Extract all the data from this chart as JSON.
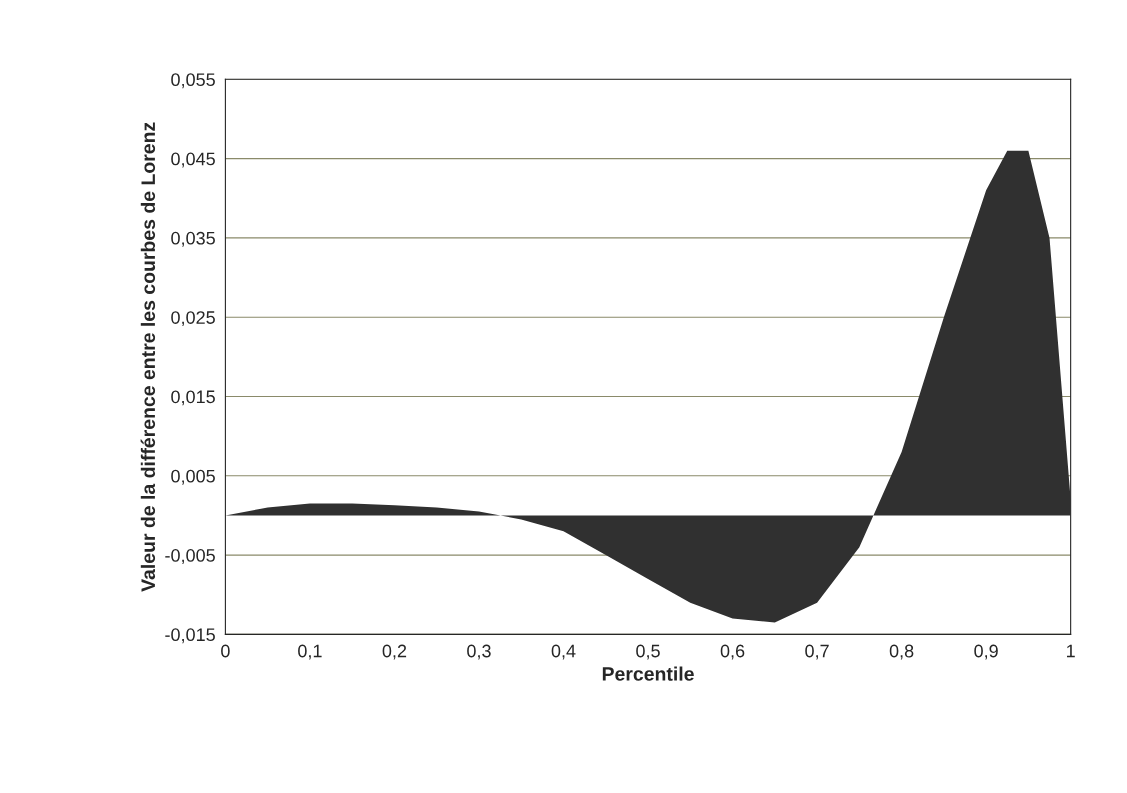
{
  "chart_data": {
    "type": "area",
    "xlabel": "Percentile",
    "ylabel": "Valeur de la différence entre les courbes de Lorenz",
    "x": [
      0,
      0.05,
      0.1,
      0.15,
      0.2,
      0.25,
      0.3,
      0.35,
      0.4,
      0.45,
      0.5,
      0.55,
      0.6,
      0.65,
      0.7,
      0.75,
      0.8,
      0.85,
      0.9,
      0.925,
      0.95,
      0.975,
      1
    ],
    "series": [
      {
        "color": "#303030",
        "values": [
          0,
          0.001,
          0.0015,
          0.0015,
          0.0013,
          0.001,
          0.0005,
          -0.0005,
          -0.002,
          -0.005,
          -0.008,
          -0.011,
          -0.013,
          -0.0135,
          -0.011,
          -0.004,
          0.008,
          0.025,
          0.041,
          0.046,
          0.046,
          0.035,
          0.002
        ]
      }
    ],
    "xlim": [
      0,
      1
    ],
    "xticks": [
      0,
      {
        "value": 0.1,
        "label": "0,1"
      },
      {
        "value": 0.2,
        "label": "0,2"
      },
      {
        "value": 0.3,
        "label": "0,3"
      },
      {
        "value": 0.4,
        "label": "0,4"
      },
      {
        "value": 0.5,
        "label": "0,5"
      },
      {
        "value": 0.6,
        "label": "0,6"
      },
      {
        "value": 0.7,
        "label": "0,7"
      },
      {
        "value": 0.8,
        "label": "0,8"
      },
      {
        "value": 0.9,
        "label": "0,9"
      },
      1
    ],
    "ylim": [
      -0.015,
      0.055
    ],
    "yticks": [
      {
        "value": -0.015,
        "label": "-0,015"
      },
      {
        "value": -0.005,
        "label": "-0,005"
      },
      {
        "value": 0.005,
        "label": "0,005"
      },
      {
        "value": 0.015,
        "label": "0,015"
      },
      {
        "value": 0.025,
        "label": "0,025"
      },
      {
        "value": 0.035,
        "label": "0,035"
      },
      {
        "value": 0.045,
        "label": "0,045"
      },
      {
        "value": 0.055,
        "label": "0,055"
      }
    ],
    "grid": "y",
    "legend": false
  }
}
